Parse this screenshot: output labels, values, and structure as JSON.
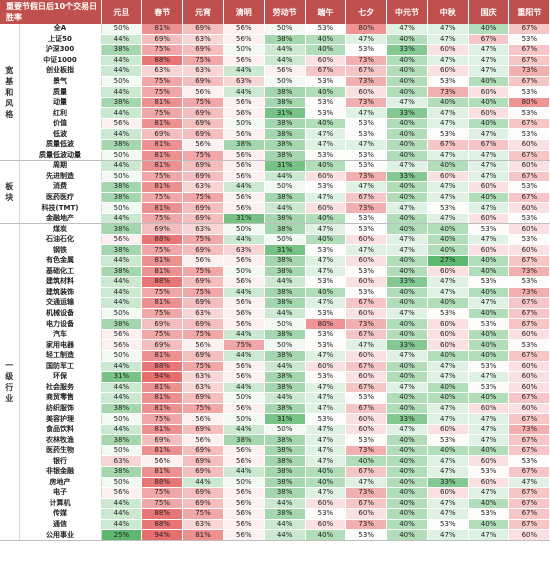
{
  "header": {
    "corner_line1": "重要节假日后10个交易日",
    "corner_line2": "胜率",
    "columns": [
      "元旦",
      "春节",
      "元宵",
      "清明",
      "劳动节",
      "端午",
      "七夕",
      "中元节",
      "中秋",
      "国庆",
      "重阳节"
    ]
  },
  "groups": [
    {
      "name": "宽基和风格",
      "rows": [
        {
          "label": "全A",
          "values": [
            "50%",
            "81%",
            "69%",
            "56%",
            "50%",
            "53%",
            "80%",
            "47%",
            "47%",
            "40%",
            "67%"
          ]
        },
        {
          "label": "上证50",
          "values": [
            "44%",
            "69%",
            "63%",
            "56%",
            "38%",
            "40%",
            "47%",
            "40%",
            "47%",
            "67%",
            "53%"
          ]
        },
        {
          "label": "沪深300",
          "values": [
            "38%",
            "75%",
            "69%",
            "50%",
            "44%",
            "40%",
            "53%",
            "33%",
            "60%",
            "47%",
            "67%"
          ]
        },
        {
          "label": "中证1000",
          "values": [
            "44%",
            "88%",
            "75%",
            "56%",
            "44%",
            "60%",
            "73%",
            "40%",
            "47%",
            "47%",
            "67%"
          ]
        },
        {
          "label": "创业板指",
          "values": [
            "44%",
            "63%",
            "63%",
            "44%",
            "56%",
            "67%",
            "67%",
            "40%",
            "60%",
            "47%",
            "73%"
          ]
        },
        {
          "label": "景气",
          "values": [
            "50%",
            "75%",
            "69%",
            "63%",
            "50%",
            "53%",
            "73%",
            "40%",
            "53%",
            "40%",
            "67%"
          ]
        },
        {
          "label": "质量",
          "values": [
            "44%",
            "75%",
            "56%",
            "44%",
            "38%",
            "40%",
            "60%",
            "40%",
            "73%",
            "60%",
            "53%"
          ]
        },
        {
          "label": "动量",
          "values": [
            "38%",
            "81%",
            "75%",
            "56%",
            "38%",
            "53%",
            "73%",
            "47%",
            "40%",
            "40%",
            "80%"
          ]
        },
        {
          "label": "红利",
          "values": [
            "44%",
            "75%",
            "69%",
            "56%",
            "31%",
            "53%",
            "47%",
            "33%",
            "47%",
            "60%",
            "53%"
          ]
        },
        {
          "label": "价值",
          "values": [
            "56%",
            "81%",
            "69%",
            "50%",
            "38%",
            "40%",
            "53%",
            "40%",
            "47%",
            "40%",
            "67%"
          ]
        },
        {
          "label": "低波",
          "values": [
            "44%",
            "69%",
            "69%",
            "56%",
            "38%",
            "47%",
            "53%",
            "40%",
            "53%",
            "47%",
            "53%"
          ]
        },
        {
          "label": "质量低波",
          "values": [
            "38%",
            "81%",
            "56%",
            "38%",
            "38%",
            "47%",
            "47%",
            "40%",
            "67%",
            "67%",
            "60%"
          ]
        },
        {
          "label": "质量低波动量",
          "values": [
            "50%",
            "81%",
            "75%",
            "56%",
            "38%",
            "53%",
            "53%",
            "40%",
            "47%",
            "47%",
            "67%"
          ]
        }
      ]
    },
    {
      "name": "板块",
      "rows": [
        {
          "label": "周期",
          "values": [
            "44%",
            "81%",
            "69%",
            "56%",
            "31%",
            "40%",
            "53%",
            "47%",
            "40%",
            "47%",
            "60%"
          ]
        },
        {
          "label": "先进制造",
          "values": [
            "50%",
            "75%",
            "69%",
            "56%",
            "44%",
            "60%",
            "73%",
            "33%",
            "60%",
            "47%",
            "67%"
          ]
        },
        {
          "label": "消费",
          "values": [
            "38%",
            "81%",
            "63%",
            "44%",
            "50%",
            "53%",
            "47%",
            "40%",
            "47%",
            "60%",
            "53%"
          ]
        },
        {
          "label": "医药医疗",
          "values": [
            "38%",
            "75%",
            "75%",
            "56%",
            "38%",
            "47%",
            "67%",
            "40%",
            "47%",
            "40%",
            "67%"
          ]
        },
        {
          "label": "科技(TMT)",
          "values": [
            "50%",
            "81%",
            "69%",
            "56%",
            "44%",
            "60%",
            "73%",
            "47%",
            "53%",
            "47%",
            "60%"
          ]
        },
        {
          "label": "金融地产",
          "values": [
            "44%",
            "75%",
            "69%",
            "31%",
            "38%",
            "40%",
            "53%",
            "40%",
            "47%",
            "60%",
            "53%"
          ]
        }
      ]
    },
    {
      "name": "一级行业",
      "rows": [
        {
          "label": "煤炭",
          "values": [
            "38%",
            "69%",
            "63%",
            "50%",
            "38%",
            "47%",
            "53%",
            "40%",
            "40%",
            "53%",
            "60%"
          ]
        },
        {
          "label": "石油石化",
          "values": [
            "56%",
            "88%",
            "75%",
            "44%",
            "50%",
            "40%",
            "60%",
            "47%",
            "40%",
            "47%",
            "53%"
          ]
        },
        {
          "label": "钢铁",
          "values": [
            "38%",
            "75%",
            "69%",
            "63%",
            "31%",
            "53%",
            "47%",
            "47%",
            "40%",
            "60%",
            "60%"
          ]
        },
        {
          "label": "有色金属",
          "values": [
            "44%",
            "81%",
            "56%",
            "56%",
            "38%",
            "47%",
            "60%",
            "40%",
            "27%",
            "40%",
            "67%"
          ]
        },
        {
          "label": "基础化工",
          "values": [
            "38%",
            "81%",
            "75%",
            "50%",
            "38%",
            "47%",
            "53%",
            "40%",
            "60%",
            "40%",
            "73%"
          ]
        },
        {
          "label": "建筑材料",
          "values": [
            "44%",
            "88%",
            "69%",
            "56%",
            "44%",
            "53%",
            "60%",
            "33%",
            "47%",
            "53%",
            "53%"
          ]
        },
        {
          "label": "建筑装饰",
          "values": [
            "44%",
            "75%",
            "75%",
            "44%",
            "38%",
            "40%",
            "53%",
            "40%",
            "47%",
            "40%",
            "73%"
          ]
        },
        {
          "label": "交通运输",
          "values": [
            "44%",
            "81%",
            "69%",
            "56%",
            "38%",
            "47%",
            "67%",
            "40%",
            "40%",
            "47%",
            "67%"
          ]
        },
        {
          "label": "机械设备",
          "values": [
            "50%",
            "75%",
            "63%",
            "56%",
            "44%",
            "53%",
            "60%",
            "47%",
            "53%",
            "40%",
            "67%"
          ]
        },
        {
          "label": "电力设备",
          "values": [
            "38%",
            "69%",
            "69%",
            "56%",
            "50%",
            "80%",
            "73%",
            "40%",
            "60%",
            "53%",
            "67%"
          ]
        },
        {
          "label": "汽车",
          "values": [
            "56%",
            "75%",
            "75%",
            "44%",
            "38%",
            "53%",
            "67%",
            "40%",
            "60%",
            "40%",
            "60%"
          ]
        },
        {
          "label": "家用电器",
          "values": [
            "56%",
            "69%",
            "56%",
            "75%",
            "50%",
            "53%",
            "47%",
            "33%",
            "60%",
            "40%",
            "53%"
          ]
        },
        {
          "label": "轻工制造",
          "values": [
            "50%",
            "81%",
            "69%",
            "44%",
            "38%",
            "47%",
            "60%",
            "47%",
            "40%",
            "40%",
            "67%"
          ]
        },
        {
          "label": "国防军工",
          "values": [
            "44%",
            "88%",
            "75%",
            "56%",
            "44%",
            "60%",
            "67%",
            "40%",
            "47%",
            "53%",
            "60%"
          ]
        },
        {
          "label": "环保",
          "values": [
            "31%",
            "94%",
            "63%",
            "56%",
            "38%",
            "53%",
            "60%",
            "40%",
            "47%",
            "47%",
            "60%"
          ]
        },
        {
          "label": "社会服务",
          "values": [
            "44%",
            "81%",
            "63%",
            "44%",
            "38%",
            "47%",
            "67%",
            "47%",
            "40%",
            "53%",
            "60%"
          ]
        },
        {
          "label": "商贸零售",
          "values": [
            "44%",
            "81%",
            "69%",
            "50%",
            "44%",
            "47%",
            "53%",
            "40%",
            "40%",
            "40%",
            "67%"
          ]
        },
        {
          "label": "纺织服饰",
          "values": [
            "38%",
            "81%",
            "75%",
            "56%",
            "38%",
            "47%",
            "67%",
            "40%",
            "47%",
            "60%",
            "60%"
          ]
        },
        {
          "label": "美容护理",
          "values": [
            "50%",
            "75%",
            "56%",
            "50%",
            "31%",
            "53%",
            "60%",
            "33%",
            "47%",
            "47%",
            "67%"
          ]
        },
        {
          "label": "食品饮料",
          "values": [
            "44%",
            "81%",
            "69%",
            "44%",
            "50%",
            "47%",
            "60%",
            "47%",
            "60%",
            "47%",
            "73%"
          ]
        },
        {
          "label": "农林牧渔",
          "values": [
            "38%",
            "69%",
            "56%",
            "38%",
            "38%",
            "47%",
            "53%",
            "40%",
            "53%",
            "47%",
            "67%"
          ]
        },
        {
          "label": "医药生物",
          "values": [
            "50%",
            "81%",
            "69%",
            "56%",
            "38%",
            "47%",
            "73%",
            "40%",
            "40%",
            "40%",
            "67%"
          ]
        },
        {
          "label": "银行",
          "values": [
            "63%",
            "56%",
            "69%",
            "56%",
            "38%",
            "47%",
            "40%",
            "40%",
            "47%",
            "60%",
            "53%"
          ]
        },
        {
          "label": "非银金融",
          "values": [
            "38%",
            "81%",
            "69%",
            "44%",
            "38%",
            "40%",
            "67%",
            "40%",
            "47%",
            "53%",
            "67%"
          ]
        },
        {
          "label": "房地产",
          "values": [
            "50%",
            "88%",
            "44%",
            "50%",
            "38%",
            "40%",
            "47%",
            "40%",
            "33%",
            "60%",
            "47%"
          ]
        },
        {
          "label": "电子",
          "values": [
            "56%",
            "75%",
            "69%",
            "56%",
            "38%",
            "47%",
            "73%",
            "40%",
            "60%",
            "47%",
            "67%"
          ]
        },
        {
          "label": "计算机",
          "values": [
            "44%",
            "75%",
            "69%",
            "56%",
            "44%",
            "60%",
            "67%",
            "40%",
            "47%",
            "40%",
            "67%"
          ]
        },
        {
          "label": "传媒",
          "values": [
            "44%",
            "88%",
            "75%",
            "56%",
            "38%",
            "53%",
            "60%",
            "40%",
            "47%",
            "53%",
            "67%"
          ]
        },
        {
          "label": "通信",
          "values": [
            "44%",
            "88%",
            "63%",
            "56%",
            "44%",
            "60%",
            "73%",
            "40%",
            "53%",
            "40%",
            "67%"
          ]
        },
        {
          "label": "公用事业",
          "values": [
            "25%",
            "94%",
            "81%",
            "56%",
            "44%",
            "40%",
            "53%",
            "40%",
            "47%",
            "47%",
            "60%"
          ]
        }
      ]
    }
  ]
}
